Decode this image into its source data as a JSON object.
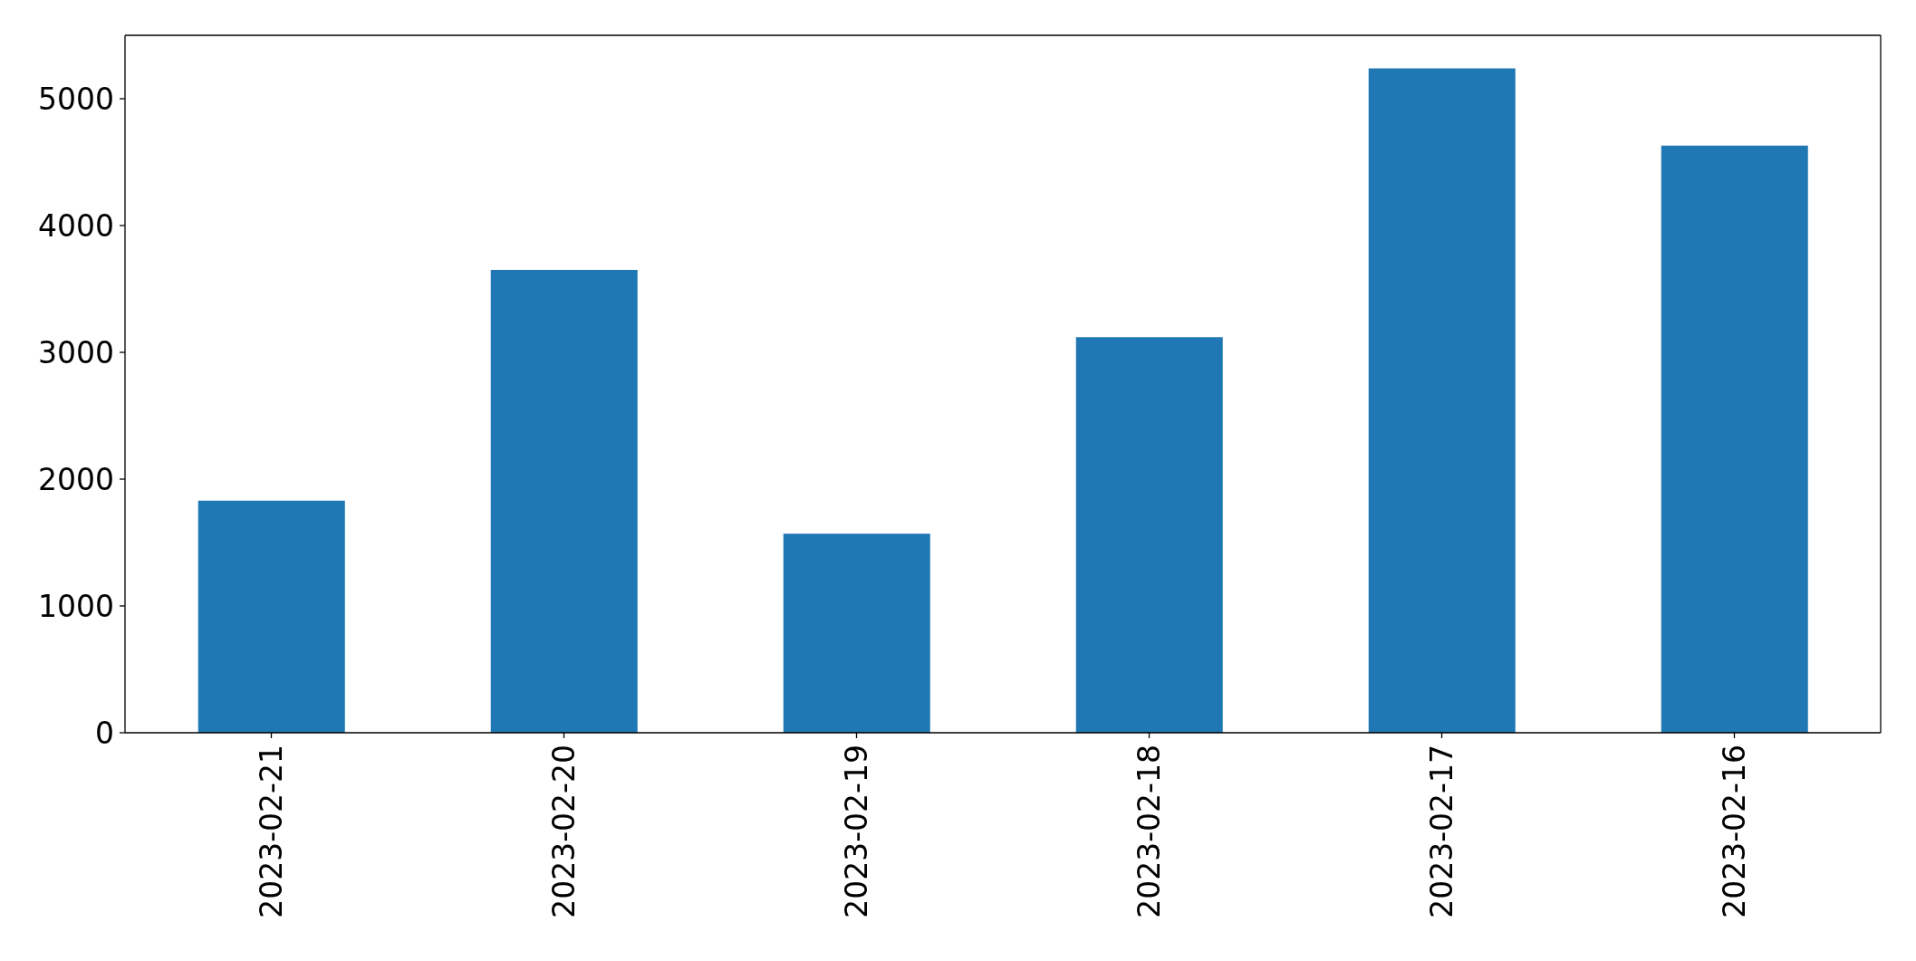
{
  "chart_data": {
    "type": "bar",
    "categories": [
      "2023-02-21",
      "2023-02-20",
      "2023-02-19",
      "2023-02-18",
      "2023-02-17",
      "2023-02-16"
    ],
    "values": [
      1830,
      3650,
      1570,
      3120,
      5240,
      4630
    ],
    "color": "#1f77b4",
    "ylim": [
      0,
      5500
    ],
    "yticks": [
      0,
      1000,
      2000,
      3000,
      4000,
      5000
    ]
  }
}
